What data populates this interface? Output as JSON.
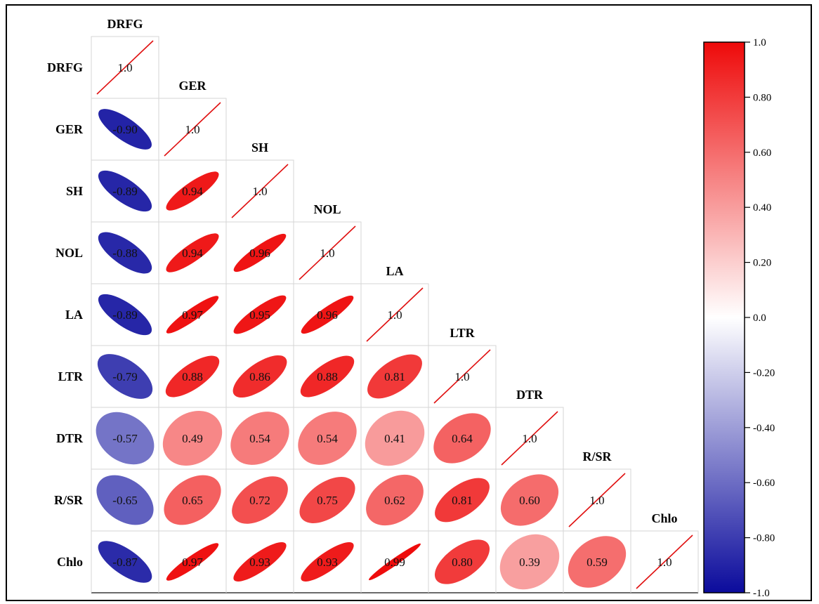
{
  "chart_data": {
    "type": "heatmap",
    "variables": [
      "DRFG",
      "GER",
      "SH",
      "NOL",
      "LA",
      "LTR",
      "DTR",
      "R/SR",
      "Chlo"
    ],
    "matrix": [
      [
        1.0,
        -0.9,
        -0.89,
        -0.88,
        -0.89,
        -0.79,
        -0.57,
        -0.65,
        -0.87
      ],
      [
        -0.9,
        1.0,
        0.94,
        0.94,
        0.97,
        0.88,
        0.49,
        0.65,
        0.97
      ],
      [
        -0.89,
        0.94,
        1.0,
        0.96,
        0.95,
        0.86,
        0.54,
        0.72,
        0.93
      ],
      [
        -0.88,
        0.94,
        0.96,
        1.0,
        0.96,
        0.88,
        0.54,
        0.75,
        0.93
      ],
      [
        -0.89,
        0.97,
        0.95,
        0.96,
        1.0,
        0.81,
        0.41,
        0.62,
        0.99
      ],
      [
        -0.79,
        0.88,
        0.86,
        0.88,
        0.81,
        1.0,
        0.64,
        0.81,
        0.8
      ],
      [
        -0.57,
        0.49,
        0.54,
        0.54,
        0.41,
        0.64,
        1.0,
        0.6,
        0.39
      ],
      [
        -0.65,
        0.65,
        0.72,
        0.75,
        0.62,
        0.81,
        0.6,
        1.0,
        0.59
      ],
      [
        -0.87,
        0.97,
        0.93,
        0.93,
        0.99,
        0.8,
        0.39,
        0.59,
        1.0
      ]
    ],
    "cell_labels": [
      [
        "1.0"
      ],
      [
        "-0.90",
        "1.0"
      ],
      [
        "-0.89",
        "0.94",
        "1.0"
      ],
      [
        "-0.88",
        "0.94",
        "0.96",
        "1.0"
      ],
      [
        "-0.89",
        "0.97",
        "0.95",
        "0.96",
        "1.0"
      ],
      [
        "-0.79",
        "0.88",
        "0.86",
        "0.88",
        "0.81",
        "1.0"
      ],
      [
        "-0.57",
        "0.49",
        "0.54",
        "0.54",
        "0.41",
        "0.64",
        "1.0"
      ],
      [
        "-0.65",
        "0.65",
        "0.72",
        "0.75",
        "0.62",
        "0.81",
        "0.60",
        "1.0"
      ],
      [
        "-0.87",
        "0.97",
        "0.93",
        "0.93",
        "0.99",
        "0.80",
        "0.39",
        "0.59",
        "1.0"
      ]
    ],
    "layout": "lower-triangle",
    "mark": "ellipse",
    "colorbar": {
      "range": [
        -1.0,
        1.0
      ],
      "ticks": [
        1.0,
        0.8,
        0.6,
        0.4,
        0.2,
        0.0,
        -0.2,
        -0.4,
        -0.6,
        -0.8,
        -1.0
      ],
      "tick_labels": [
        "1.0",
        "0.80",
        "0.60",
        "0.40",
        "0.20",
        "0.0",
        "-0.20",
        "-0.40",
        "-0.60",
        "-0.80",
        "-1.0"
      ],
      "colors": {
        "negative": "#0b0b9c",
        "zero": "#ffffff",
        "positive": "#ee0a0a"
      },
      "position": "right"
    },
    "diagonal_line_color": "#e01010"
  }
}
